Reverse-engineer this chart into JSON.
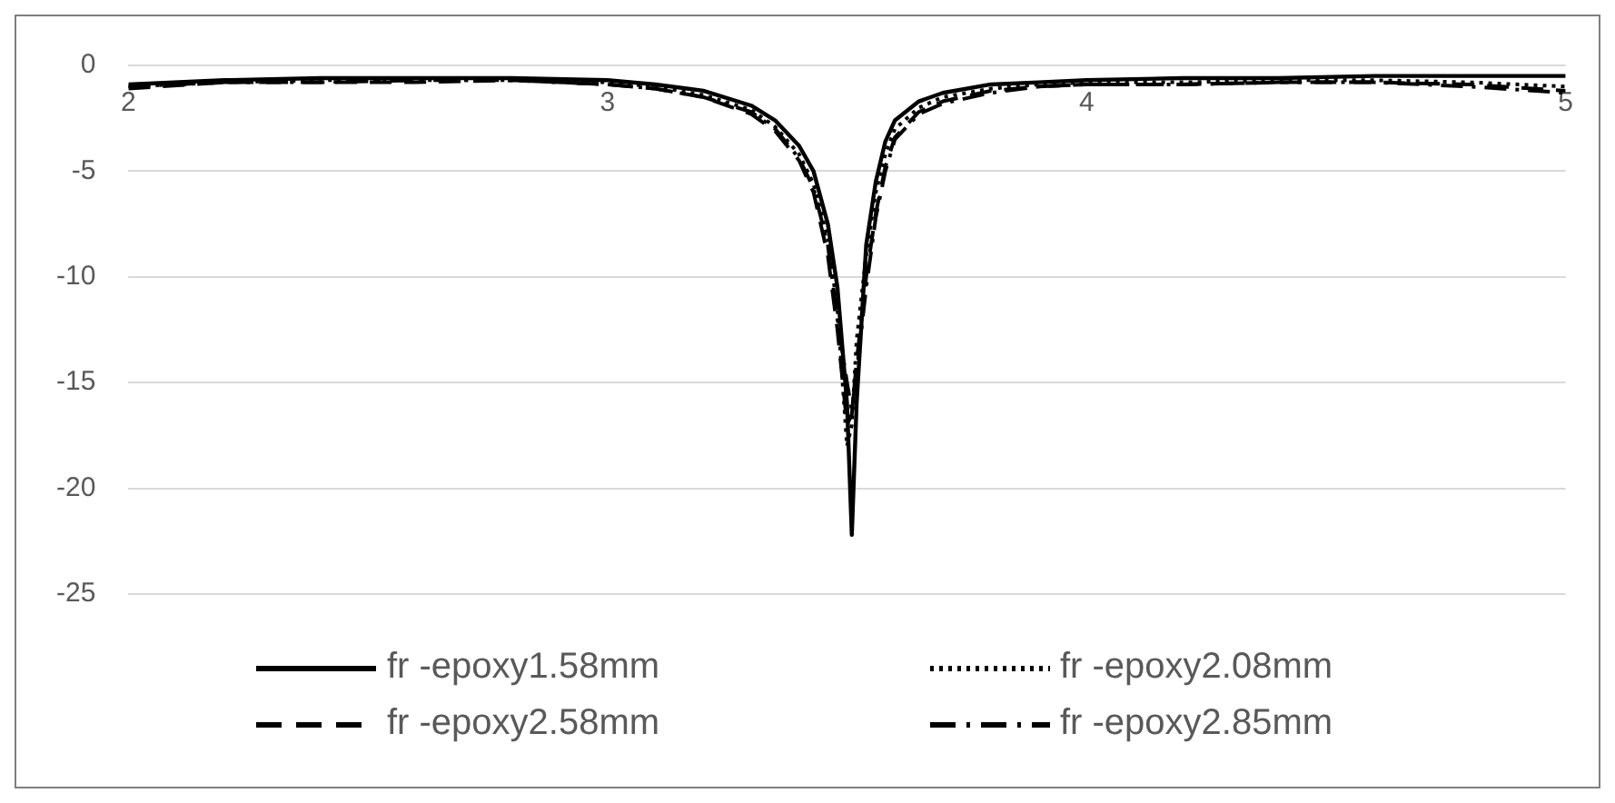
{
  "chart_data": {
    "type": "line",
    "x": [
      2,
      2.2,
      2.4,
      2.6,
      2.8,
      3.0,
      3.1,
      3.2,
      3.3,
      3.35,
      3.4,
      3.43,
      3.46,
      3.48,
      3.5,
      3.51,
      3.52,
      3.54,
      3.56,
      3.58,
      3.6,
      3.65,
      3.7,
      3.8,
      3.9,
      4.0,
      4.2,
      4.4,
      4.6,
      4.8,
      5.0
    ],
    "series": [
      {
        "name": "fr -epoxy1.58mm",
        "color": "#000000",
        "line_style": "solid",
        "values": [
          -0.9,
          -0.7,
          -0.6,
          -0.6,
          -0.6,
          -0.7,
          -0.9,
          -1.2,
          -1.9,
          -2.6,
          -3.8,
          -5.0,
          -7.5,
          -10.5,
          -16,
          -22.2,
          -16,
          -8.5,
          -5.5,
          -3.6,
          -2.6,
          -1.7,
          -1.3,
          -0.9,
          -0.8,
          -0.7,
          -0.6,
          -0.6,
          -0.5,
          -0.5,
          -0.5
        ]
      },
      {
        "name": "fr -epoxy2.08mm",
        "color": "#000000",
        "line_style": "dotted",
        "values": [
          -1.0,
          -0.8,
          -0.7,
          -0.7,
          -0.7,
          -0.8,
          -1.0,
          -1.4,
          -2.1,
          -2.9,
          -4.2,
          -5.6,
          -8.2,
          -11.5,
          -18,
          -17,
          -13,
          -9,
          -6,
          -4.2,
          -3.0,
          -2.0,
          -1.5,
          -1.1,
          -0.9,
          -0.8,
          -0.8,
          -0.7,
          -0.7,
          -0.8,
          -1.0
        ]
      },
      {
        "name": "fr -epoxy2.58mm",
        "color": "#000000",
        "line_style": "dashed",
        "values": [
          -1.1,
          -0.8,
          -0.8,
          -0.8,
          -0.7,
          -0.9,
          -1.1,
          -1.5,
          -2.3,
          -3.1,
          -4.5,
          -6,
          -9,
          -12.5,
          -17,
          -16.5,
          -14,
          -10,
          -7,
          -4.8,
          -3.4,
          -2.2,
          -1.7,
          -1.2,
          -1.0,
          -0.9,
          -0.9,
          -0.8,
          -0.8,
          -0.9,
          -1.2
        ]
      },
      {
        "name": "fr -epoxy2.85mm",
        "color": "#000000",
        "line_style": "dashdot",
        "values": [
          -1.0,
          -0.8,
          -0.8,
          -0.7,
          -0.7,
          -0.9,
          -1.1,
          -1.5,
          -2.2,
          -3.0,
          -4.4,
          -5.8,
          -8.5,
          -12,
          -15,
          -16.3,
          -14.5,
          -10.5,
          -7.2,
          -5.0,
          -3.5,
          -2.3,
          -1.8,
          -1.3,
          -1.0,
          -0.9,
          -0.9,
          -0.8,
          -0.8,
          -1.0,
          -1.3
        ]
      }
    ],
    "xlim": [
      2,
      5
    ],
    "xticks": [
      2,
      3,
      4,
      5
    ],
    "ylim": [
      -25,
      0
    ],
    "yticks": [
      0,
      -5,
      -10,
      -15,
      -20,
      -25
    ],
    "grid": "y",
    "legend": "bottom",
    "marker": "none"
  }
}
